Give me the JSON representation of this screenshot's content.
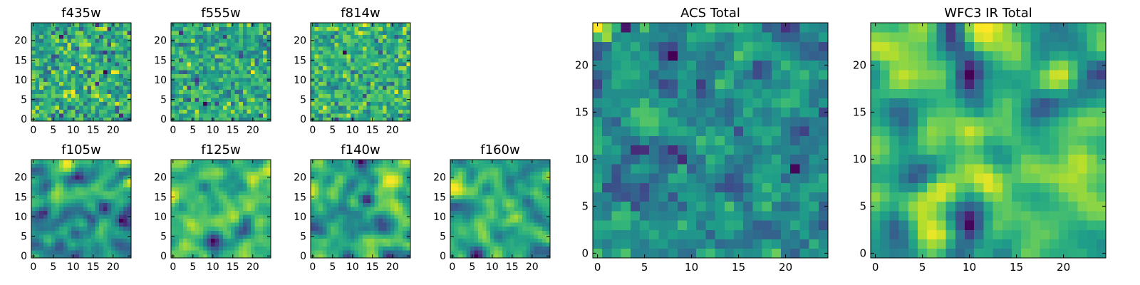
{
  "chart_data": [
    {
      "type": "heatmap",
      "title": "f435w",
      "xlabel": "",
      "ylabel": "",
      "grid_size": [
        25,
        25
      ],
      "xlim": [
        -0.5,
        24.5
      ],
      "ylim": [
        -0.5,
        24.5
      ],
      "xticks": [
        0,
        5,
        10,
        15,
        20
      ],
      "yticks": [
        0,
        5,
        10,
        15,
        20
      ],
      "colormap": "viridis",
      "texture": "fine-noise"
    },
    {
      "type": "heatmap",
      "title": "f555w",
      "xlabel": "",
      "ylabel": "",
      "grid_size": [
        25,
        25
      ],
      "xlim": [
        -0.5,
        24.5
      ],
      "ylim": [
        -0.5,
        24.5
      ],
      "xticks": [
        0,
        5,
        10,
        15,
        20
      ],
      "yticks": [
        0,
        5,
        10,
        15,
        20
      ],
      "colormap": "viridis",
      "texture": "fine-noise"
    },
    {
      "type": "heatmap",
      "title": "f814w",
      "xlabel": "",
      "ylabel": "",
      "grid_size": [
        25,
        25
      ],
      "xlim": [
        -0.5,
        24.5
      ],
      "ylim": [
        -0.5,
        24.5
      ],
      "xticks": [
        0,
        5,
        10,
        15,
        20
      ],
      "yticks": [
        0,
        5,
        10,
        15,
        20
      ],
      "colormap": "viridis",
      "texture": "fine-noise"
    },
    {
      "type": "heatmap",
      "title": "f105w",
      "xlabel": "",
      "ylabel": "",
      "grid_size": [
        25,
        25
      ],
      "xlim": [
        -0.5,
        24.5
      ],
      "ylim": [
        -0.5,
        24.5
      ],
      "xticks": [
        0,
        5,
        10,
        15,
        20
      ],
      "yticks": [
        0,
        5,
        10,
        15,
        20
      ],
      "colormap": "viridis",
      "texture": "smooth"
    },
    {
      "type": "heatmap",
      "title": "f125w",
      "xlabel": "",
      "ylabel": "",
      "grid_size": [
        25,
        25
      ],
      "xlim": [
        -0.5,
        24.5
      ],
      "ylim": [
        -0.5,
        24.5
      ],
      "xticks": [
        0,
        5,
        10,
        15,
        20
      ],
      "yticks": [
        0,
        5,
        10,
        15,
        20
      ],
      "colormap": "viridis",
      "texture": "smooth"
    },
    {
      "type": "heatmap",
      "title": "f140w",
      "xlabel": "",
      "ylabel": "",
      "grid_size": [
        25,
        25
      ],
      "xlim": [
        -0.5,
        24.5
      ],
      "ylim": [
        -0.5,
        24.5
      ],
      "xticks": [
        0,
        5,
        10,
        15,
        20
      ],
      "yticks": [
        0,
        5,
        10,
        15,
        20
      ],
      "colormap": "viridis",
      "texture": "smooth"
    },
    {
      "type": "heatmap",
      "title": "f160w",
      "xlabel": "",
      "ylabel": "",
      "grid_size": [
        25,
        25
      ],
      "xlim": [
        -0.5,
        24.5
      ],
      "ylim": [
        -0.5,
        24.5
      ],
      "xticks": [
        0,
        5,
        10,
        15,
        20
      ],
      "yticks": [
        0,
        5,
        10,
        15,
        20
      ],
      "colormap": "viridis",
      "texture": "smooth"
    },
    {
      "type": "heatmap",
      "title": "ACS Total",
      "xlabel": "",
      "ylabel": "",
      "grid_size": [
        25,
        25
      ],
      "xlim": [
        -0.5,
        24.5
      ],
      "ylim": [
        -0.5,
        24.5
      ],
      "xticks": [
        0,
        5,
        10,
        15,
        20
      ],
      "yticks": [
        0,
        5,
        10,
        15,
        20
      ],
      "colormap": "viridis",
      "texture": "noise"
    },
    {
      "type": "heatmap",
      "title": "WFC3 IR Total",
      "xlabel": "",
      "ylabel": "",
      "grid_size": [
        25,
        25
      ],
      "xlim": [
        -0.5,
        24.5
      ],
      "ylim": [
        -0.5,
        24.5
      ],
      "xticks": [
        0,
        5,
        10,
        15,
        20
      ],
      "yticks": [
        0,
        5,
        10,
        15,
        20
      ],
      "colormap": "viridis",
      "texture": "smooth"
    }
  ]
}
